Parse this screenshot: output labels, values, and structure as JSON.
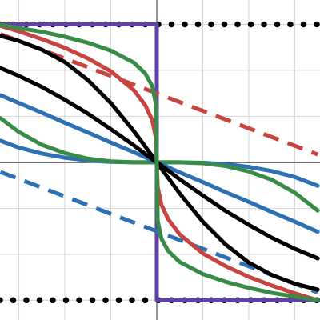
{
  "chart_data": {
    "type": "line",
    "xlim": [
      -3.41,
      3.55
    ],
    "ylim": [
      -3.43,
      3.53
    ],
    "xticks": [
      -3,
      -2,
      -1,
      0,
      1,
      2,
      3
    ],
    "yticks": [
      -3,
      -2,
      -1,
      0,
      1,
      2,
      3
    ],
    "grid": true,
    "series": [
      {
        "color": "#000000",
        "style": "dotted",
        "x": [
          -3.41,
          3.55
        ],
        "values": [
          3,
          3
        ]
      },
      {
        "color": "#000000",
        "style": "dotted",
        "x": [
          -3.41,
          3.55
        ],
        "values": [
          -3,
          -3
        ]
      },
      {
        "color": "#6042a6",
        "style": "solid",
        "x": [
          -3.41,
          0,
          0,
          3.55
        ],
        "values": [
          3,
          3,
          -3,
          -3
        ]
      },
      {
        "color": "#c74440",
        "style": "dashed",
        "x": [
          -3.4,
          3.5
        ],
        "values": [
          2.79,
          0.17
        ]
      },
      {
        "color": "#2d70b3",
        "style": "dashed",
        "x": [
          -3.4,
          3.5
        ],
        "values": [
          -0.21,
          -2.83
        ]
      },
      {
        "color": "#2d70b3",
        "style": "solid",
        "x": [
          -3.4,
          -3,
          -2.5,
          -2,
          -1.5,
          -1,
          -0.5,
          -0.25,
          -0.1,
          -0.02,
          0,
          0.02,
          0.1,
          0.25,
          0.5,
          1,
          1.5,
          2,
          2.5,
          3,
          3.5
        ],
        "values": [
          0.47,
          0.32,
          0.19,
          0.1,
          0.04,
          0.01,
          0,
          0,
          0,
          0,
          0,
          0,
          0,
          0,
          0,
          -0.01,
          -0.04,
          -0.1,
          -0.19,
          -0.32,
          -0.51
        ]
      },
      {
        "color": "#388c46",
        "style": "solid",
        "x": [
          -3.4,
          -3,
          -2.5,
          -2,
          -1.5,
          -1,
          -0.5,
          -0.25,
          -0.1,
          -0.02,
          0,
          0.02,
          0.1,
          0.25,
          0.5,
          1,
          1.5,
          2,
          2.5,
          3,
          3.5
        ],
        "values": [
          0.96,
          0.66,
          0.38,
          0.2,
          0.08,
          0.02,
          0,
          0,
          0,
          0,
          0,
          0,
          0,
          0,
          0,
          -0.02,
          -0.08,
          -0.2,
          -0.38,
          -0.66,
          -1.05
        ]
      },
      {
        "color": "#2d70b3",
        "style": "solid",
        "x": [
          -3.4,
          -3,
          -2.5,
          -2,
          -1.5,
          -1,
          -0.5,
          -0.25,
          -0.1,
          -0.02,
          0,
          0.02,
          0.1,
          0.25,
          0.5,
          1,
          1.5,
          2,
          2.5,
          3,
          3.5
        ],
        "values": [
          1.46,
          1.29,
          1.08,
          0.86,
          0.65,
          0.43,
          0.22,
          0.11,
          0.04,
          0.01,
          0,
          -0.01,
          -0.04,
          -0.11,
          -0.22,
          -0.43,
          -0.65,
          -0.86,
          -1.08,
          -1.29,
          -1.51
        ]
      },
      {
        "color": "#000000",
        "style": "solid",
        "x": [
          -3.4,
          -3,
          -2.5,
          -2,
          -1.5,
          -1,
          -0.5,
          -0.25,
          -0.1,
          -0.02,
          0,
          0.02,
          0.1,
          0.25,
          0.5,
          1,
          1.5,
          2,
          2.5,
          3,
          3.5
        ],
        "values": [
          2.05,
          1.88,
          1.64,
          1.36,
          1.06,
          0.72,
          0.37,
          0.18,
          0.07,
          0.01,
          0,
          -0.01,
          -0.07,
          -0.18,
          -0.37,
          -0.72,
          -1.06,
          -1.36,
          -1.64,
          -1.88,
          -2.09
        ]
      },
      {
        "color": "#000000",
        "style": "solid",
        "x": [
          -3.4,
          -3,
          -2.5,
          -2,
          -1.5,
          -1,
          -0.5,
          -0.25,
          -0.1,
          -0.02,
          0,
          0.02,
          0.1,
          0.25,
          0.5,
          1,
          1.5,
          2,
          2.5,
          3,
          3.5
        ],
        "values": [
          2.75,
          2.64,
          2.45,
          2.18,
          1.79,
          1.29,
          0.68,
          0.34,
          0.14,
          0.03,
          0,
          -0.03,
          -0.14,
          -0.34,
          -0.68,
          -1.29,
          -1.79,
          -2.18,
          -2.45,
          -2.64,
          -2.77
        ]
      },
      {
        "color": "#c74440",
        "style": "solid",
        "x": [
          -3.4,
          -3,
          -2.5,
          -2,
          -1.5,
          -1,
          -0.5,
          -0.25,
          -0.1,
          -0.02,
          0,
          0.02,
          0.1,
          0.25,
          0.5,
          1,
          1.5,
          2,
          2.5,
          3,
          3.5
        ],
        "values": [
          2.97,
          2.85,
          2.68,
          2.49,
          2.26,
          1.98,
          1.57,
          1.24,
          0.92,
          0.54,
          0,
          -0.54,
          -0.92,
          -1.24,
          -1.57,
          -1.98,
          -2.26,
          -2.49,
          -2.68,
          -2.85,
          -3
        ]
      },
      {
        "color": "#388c46",
        "style": "solid",
        "x": [
          -3.4,
          -3,
          -2.5,
          -2,
          -1.5,
          -1,
          -0.5,
          -0.25,
          -0.1,
          -0.02,
          0,
          0.02,
          0.1,
          0.25,
          0.5,
          1,
          1.5,
          2,
          2.5,
          3,
          3.5
        ],
        "values": [
          2.99,
          2.92,
          2.84,
          2.73,
          2.6,
          2.43,
          2.17,
          1.93,
          1.66,
          1.27,
          0,
          -1.27,
          -1.66,
          -1.93,
          -2.17,
          -2.43,
          -2.6,
          -2.73,
          -2.84,
          -2.92,
          -3
        ]
      }
    ]
  }
}
